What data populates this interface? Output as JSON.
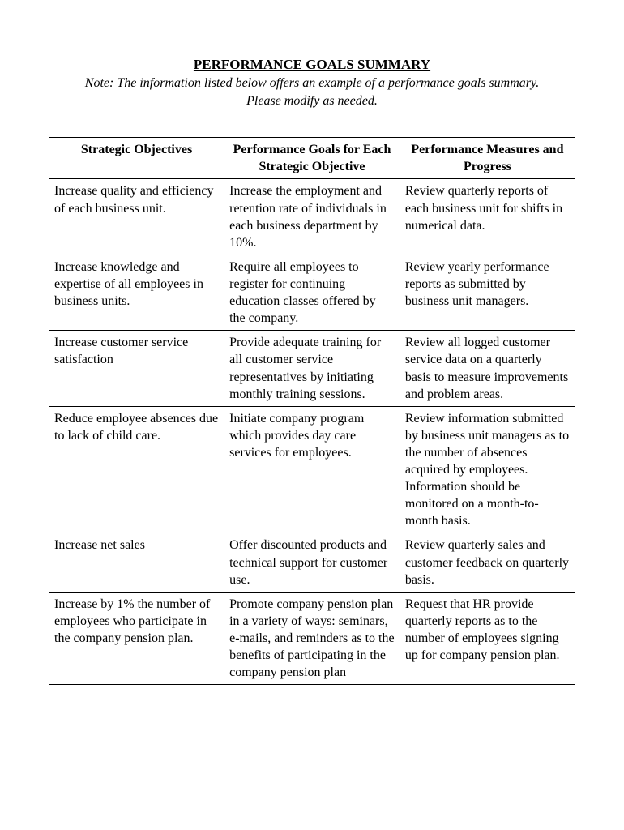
{
  "title": "PERFORMANCE GOALS SUMMARY",
  "note_line1": "Note: The information listed below offers an example of a performance goals summary.",
  "note_line2": "Please modify as needed.",
  "table": {
    "columns": [
      "Strategic Objectives",
      "Performance Goals for Each Strategic Objective",
      "Performance Measures and Progress"
    ],
    "rows": [
      {
        "objective": "Increase quality and efficiency of each business unit.",
        "goal": "Increase the employment and retention rate of individuals in each business department by 10%.",
        "measure": "Review quarterly reports of each business unit for shifts in numerical data."
      },
      {
        "objective": "Increase knowledge and expertise of all employees in business units.",
        "goal": "Require all employees to register for continuing education classes offered by the company.",
        "measure": "Review yearly performance reports as submitted by business unit managers."
      },
      {
        "objective": "Increase customer service satisfaction",
        "goal": "Provide adequate training for all customer service representatives by initiating monthly training sessions.",
        "measure": "Review all logged customer service data on a quarterly basis to measure improvements and problem areas."
      },
      {
        "objective": "Reduce employee absences due to lack of child care.",
        "goal": "Initiate company program which provides day care services for employees.",
        "measure": "Review information submitted by business unit managers as to the number of absences acquired by employees. Information should be monitored on a month-to-month basis."
      },
      {
        "objective": "Increase net sales",
        "goal": "Offer discounted products and technical support for customer use.",
        "measure": "Review quarterly sales and customer feedback on quarterly basis."
      },
      {
        "objective": "Increase by 1% the number of employees who participate in the company pension plan.",
        "goal": "Promote company pension plan in a variety of ways: seminars, e-mails, and reminders as to the benefits of participating in the company pension plan",
        "measure": "Request that HR provide quarterly reports as to the number of employees signing up for company pension plan."
      }
    ]
  }
}
